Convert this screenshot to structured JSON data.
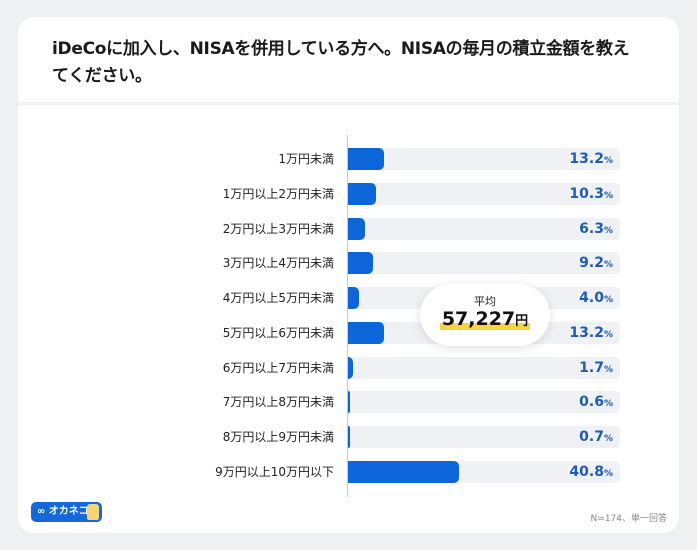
{
  "header": {
    "title_line1": "iDeCoに加入し、NISAを併用している方へ。NISAの毎月の積立金額を教え",
    "title_line2": "てください。"
  },
  "chart_data": {
    "type": "bar",
    "orientation": "horizontal",
    "title": "iDeCoに加入し、NISAを併用している方へ。NISAの毎月の積立金額を教えてください。",
    "categories": [
      "1万円未満",
      "1万円以上2万円未満",
      "2万円以上3万円未満",
      "3万円以上4万円未満",
      "4万円以上5万円未満",
      "5万円以上6万円未満",
      "6万円以上7万円未満",
      "7万円以上8万円未満",
      "8万円以上9万円未満",
      "9万円以上10万円以下"
    ],
    "values": [
      13.2,
      10.3,
      6.3,
      9.2,
      4.0,
      13.2,
      1.7,
      0.6,
      0.7,
      40.8
    ],
    "value_labels": [
      "13.2",
      "10.3",
      "6.3",
      "9.2",
      "4.0",
      "13.2",
      "1.7",
      "0.6",
      "0.7",
      "40.8"
    ],
    "unit": "%",
    "xlim": [
      0,
      100
    ],
    "bar_color": "#0d66d9",
    "value_color": "#1e5bb5"
  },
  "average": {
    "label": "平均",
    "value": "57,227",
    "unit": "円"
  },
  "footer": {
    "logo_text": "∞ オカネコ",
    "note": "N=174、単一回答"
  }
}
